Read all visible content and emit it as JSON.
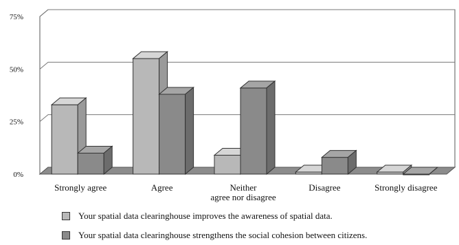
{
  "chart_data": {
    "type": "bar",
    "categories": [
      "Strongly agree",
      "Agree",
      "Neither agree nor disagree",
      "Disagree",
      "Strongly disagree"
    ],
    "category_lines": [
      [
        "Strongly agree"
      ],
      [
        "Agree"
      ],
      [
        "Neither",
        "agree nor disagree"
      ],
      [
        "Disagree"
      ],
      [
        "Strongly disagree"
      ]
    ],
    "series": [
      {
        "name": "Your spatial data clearinghouse improves the awareness of spatial data.",
        "values": [
          33,
          55,
          9,
          1,
          1
        ],
        "color": "#b8b8b8"
      },
      {
        "name": "Your spatial data clearinghouse strengthens the social cohesion between citizens.",
        "values": [
          10,
          38,
          41,
          8,
          0
        ],
        "color": "#8a8a8a"
      }
    ],
    "yticks": [
      "0%",
      "25%",
      "50%",
      "75%"
    ],
    "ylim": [
      0,
      75
    ],
    "grid": true,
    "three_d": true,
    "legend_position": "bottom"
  }
}
